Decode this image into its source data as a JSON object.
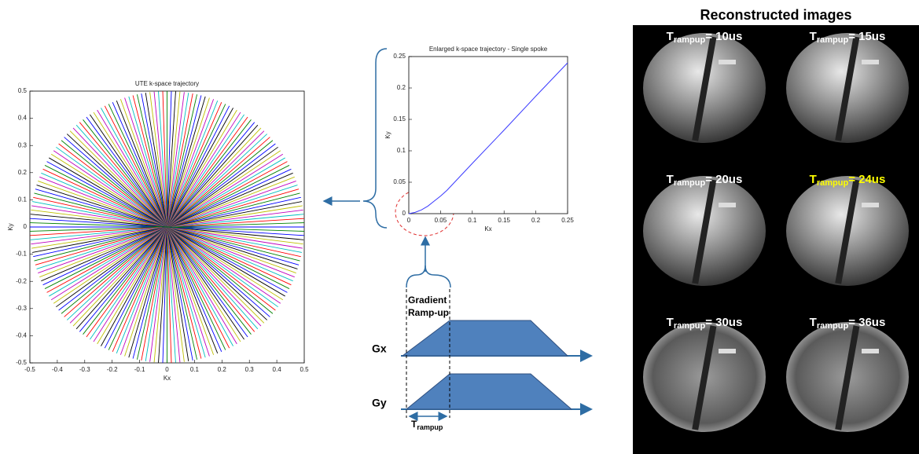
{
  "chart_data": [
    {
      "type": "radial",
      "title": "UTE k-space trajectory",
      "x_label": "Kx",
      "y_label": "Ky",
      "xlim": [
        -0.5,
        0.5
      ],
      "ylim": [
        -0.5,
        0.5
      ],
      "xticks": [
        -0.5,
        -0.4,
        -0.3,
        -0.2,
        -0.1,
        0,
        0.1,
        0.2,
        0.3,
        0.4,
        0.5
      ],
      "yticks": [
        -0.5,
        -0.4,
        -0.3,
        -0.2,
        -0.1,
        0,
        0.1,
        0.2,
        0.3,
        0.4,
        0.5
      ],
      "spoke_count": 100,
      "radius": 0.5,
      "colors": [
        "#0000ff",
        "#008000",
        "#ff0000",
        "#00bfbf",
        "#bf00bf",
        "#bfbf00",
        "#000000"
      ]
    },
    {
      "type": "line",
      "title": "Enlarged k-space trajectory - Single spoke",
      "x_label": "Kx",
      "y_label": "Ky",
      "xlim": [
        0,
        0.25
      ],
      "ylim": [
        0,
        0.25
      ],
      "xticks": [
        0,
        0.05,
        0.1,
        0.15,
        0.2,
        0.25
      ],
      "yticks": [
        0,
        0.05,
        0.1,
        0.15,
        0.2,
        0.25
      ],
      "x": [
        0,
        0.01,
        0.02,
        0.03,
        0.04,
        0.05,
        0.06,
        0.1,
        0.15,
        0.2,
        0.25
      ],
      "values": [
        0,
        0.002,
        0.006,
        0.012,
        0.02,
        0.028,
        0.037,
        0.08,
        0.133,
        0.187,
        0.24
      ],
      "color": "#3a3aff"
    }
  ],
  "diagram": {
    "gradient_label": [
      "Gradient",
      "Ramp-up"
    ],
    "gx": "Gx",
    "gy": "Gy",
    "trampup": {
      "main": "T",
      "sub": "rampup"
    }
  },
  "images": {
    "title": "Reconstructed images",
    "label_color": "#ffffff",
    "highlight_color": "#ffff00",
    "panels": [
      {
        "prefix": "T",
        "subscript": "rampup",
        "suffix": "= 10us",
        "highlight": false
      },
      {
        "prefix": "T",
        "subscript": "rampup",
        "suffix": "= 15us",
        "highlight": false
      },
      {
        "prefix": "T",
        "subscript": "rampup",
        "suffix": "= 20us",
        "highlight": false
      },
      {
        "prefix": "T",
        "subscript": "rampup",
        "suffix": "= 24us",
        "highlight": true
      },
      {
        "prefix": "T",
        "subscript": "rampup",
        "suffix": "= 30us",
        "highlight": false
      },
      {
        "prefix": "T",
        "subscript": "rampup",
        "suffix": "= 36us",
        "highlight": false
      }
    ]
  }
}
